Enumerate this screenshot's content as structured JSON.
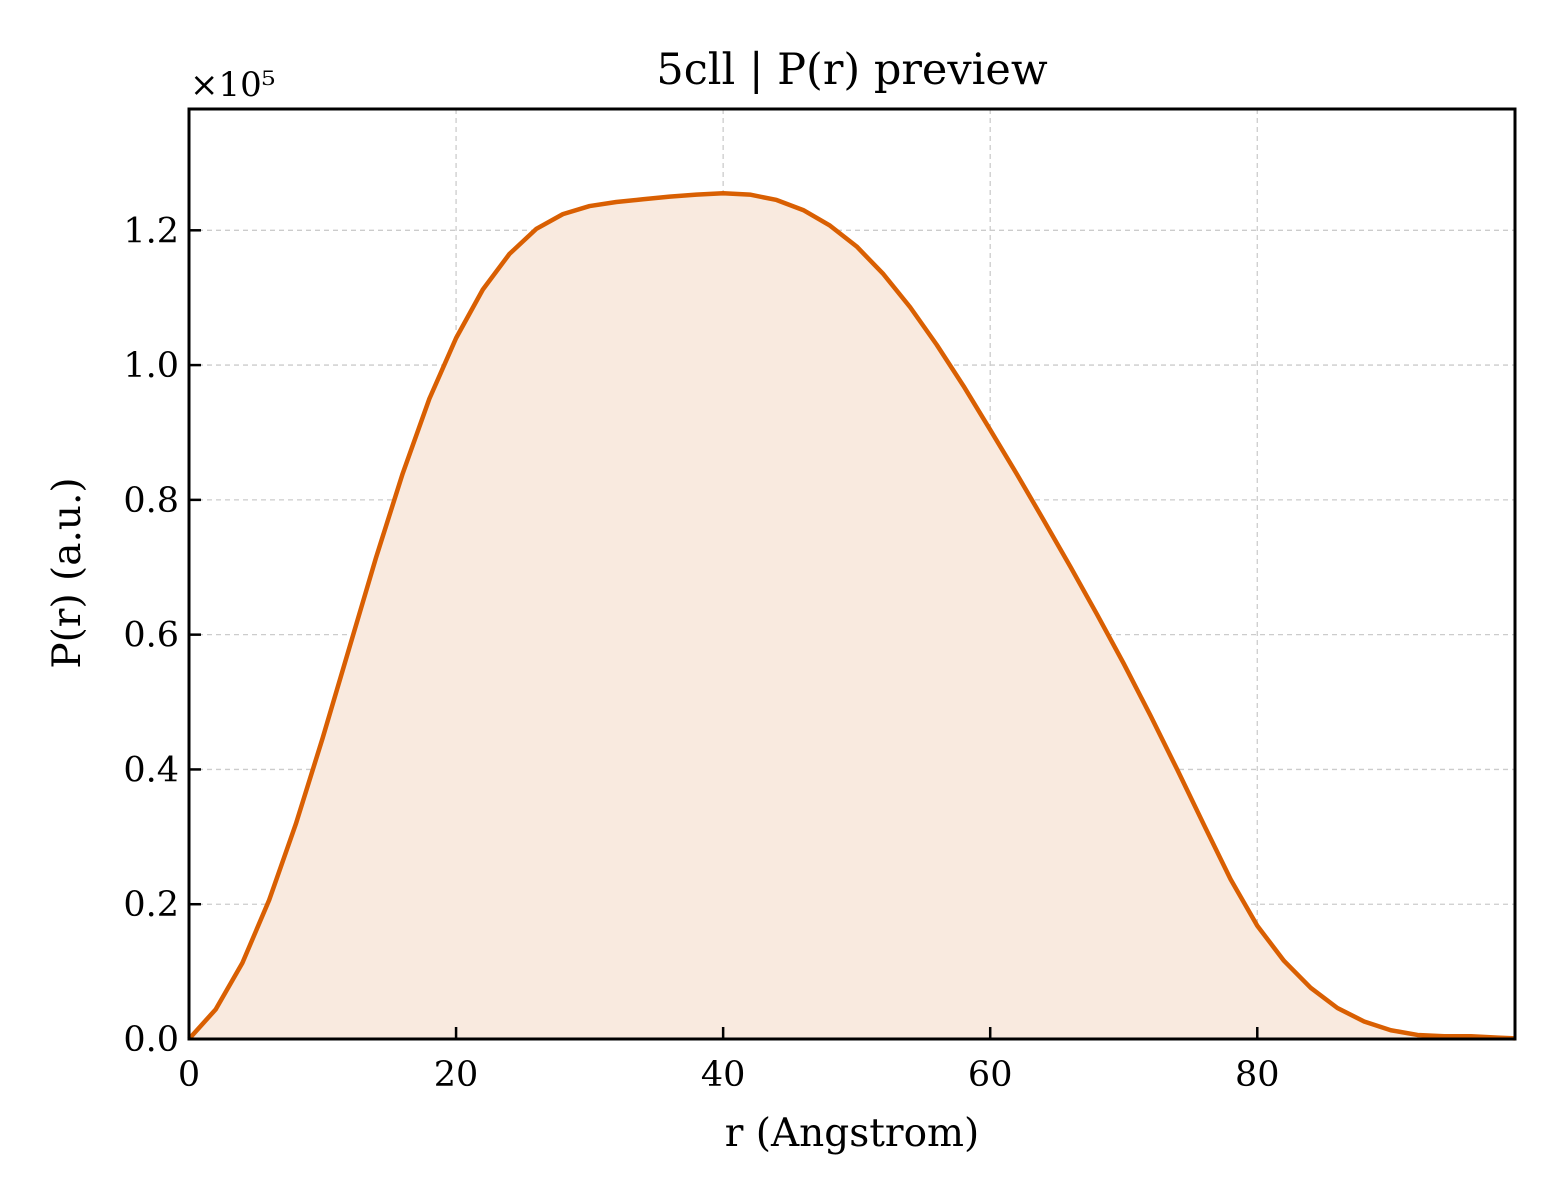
{
  "chart_data": {
    "type": "area",
    "title": "5cll | P(r) preview",
    "xlabel": "r (Angstrom)",
    "ylabel": "P(r) (a.u.)",
    "y_multiplier_label": "×10⁵",
    "xlim": [
      0,
      99.3
    ],
    "ylim": [
      0,
      1.38
    ],
    "y_unit_scale": 100000,
    "xticks": [
      0,
      20,
      40,
      60,
      80
    ],
    "yticks": [
      0.0,
      0.2,
      0.4,
      0.6,
      0.8,
      1.0,
      1.2
    ],
    "xtick_labels": [
      "0",
      "20",
      "40",
      "60",
      "80"
    ],
    "ytick_labels": [
      "0.0",
      "0.2",
      "0.4",
      "0.6",
      "0.8",
      "1.0",
      "1.2"
    ],
    "grid": true,
    "line_color": "#d95f02",
    "fill_color": "#f9eadf",
    "series": [
      {
        "x": [
          0,
          2,
          4,
          6,
          8,
          10,
          12,
          14,
          16,
          18,
          20,
          22,
          24,
          26,
          28,
          30,
          32,
          34,
          36,
          38,
          40,
          42,
          44,
          46,
          48,
          50,
          52,
          54,
          56,
          58,
          60,
          62,
          64,
          66,
          68,
          70,
          72,
          74,
          76,
          78,
          80,
          82,
          84,
          86,
          88,
          90,
          92,
          94,
          96,
          98,
          99.3
        ],
        "y": [
          0.0,
          0.044,
          0.113,
          0.206,
          0.319,
          0.446,
          0.58,
          0.714,
          0.839,
          0.95,
          1.04,
          1.112,
          1.165,
          1.202,
          1.224,
          1.236,
          1.242,
          1.246,
          1.25,
          1.253,
          1.255,
          1.253,
          1.245,
          1.23,
          1.207,
          1.176,
          1.135,
          1.086,
          1.03,
          0.969,
          0.904,
          0.838,
          0.77,
          0.701,
          0.63,
          0.557,
          0.48,
          0.4,
          0.318,
          0.237,
          0.168,
          0.116,
          0.076,
          0.046,
          0.026,
          0.013,
          0.006,
          0.004,
          0.004,
          0.002,
          0.001
        ]
      }
    ]
  }
}
